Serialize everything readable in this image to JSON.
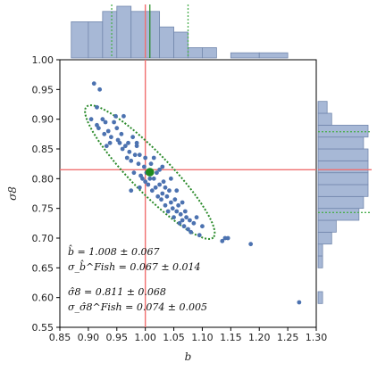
{
  "chart_data": {
    "type": "scatter",
    "xlabel": "b",
    "ylabel": "σ8",
    "xlim": [
      0.85,
      1.3
    ],
    "ylim": [
      0.55,
      1.0
    ],
    "xticks": [
      "0.85",
      "0.90",
      "0.95",
      "1.00",
      "1.05",
      "1.10",
      "1.15",
      "1.20",
      "1.25",
      "1.30"
    ],
    "yticks": [
      "0.55",
      "0.60",
      "0.65",
      "0.70",
      "0.75",
      "0.80",
      "0.85",
      "0.90",
      "0.95",
      "1.00"
    ],
    "grid": false,
    "reference_lines": {
      "b": 1.0,
      "sigma8": 0.815
    },
    "mean_point": {
      "b": 1.008,
      "sigma8": 0.811
    },
    "fisher_ellipse": {
      "center": [
        1.008,
        0.811
      ],
      "orientation": "negative correlation",
      "style": "dotted green"
    },
    "points": [
      [
        0.905,
        0.9
      ],
      [
        0.91,
        0.96
      ],
      [
        0.915,
        0.89
      ],
      [
        0.918,
        0.885
      ],
      [
        0.92,
        0.95
      ],
      [
        0.925,
        0.9
      ],
      [
        0.928,
        0.875
      ],
      [
        0.93,
        0.895
      ],
      [
        0.935,
        0.88
      ],
      [
        0.938,
        0.86
      ],
      [
        0.94,
        0.87
      ],
      [
        0.945,
        0.895
      ],
      [
        0.95,
        0.885
      ],
      [
        0.952,
        0.865
      ],
      [
        0.955,
        0.86
      ],
      [
        0.958,
        0.875
      ],
      [
        0.96,
        0.85
      ],
      [
        0.962,
        0.905
      ],
      [
        0.965,
        0.855
      ],
      [
        0.968,
        0.835
      ],
      [
        0.97,
        0.86
      ],
      [
        0.972,
        0.845
      ],
      [
        0.975,
        0.83
      ],
      [
        0.978,
        0.87
      ],
      [
        0.98,
        0.81
      ],
      [
        0.982,
        0.84
      ],
      [
        0.985,
        0.855
      ],
      [
        0.988,
        0.825
      ],
      [
        0.99,
        0.84
      ],
      [
        0.992,
        0.805
      ],
      [
        0.995,
        0.8
      ],
      [
        0.998,
        0.82
      ],
      [
        1.0,
        0.835
      ],
      [
        1.002,
        0.81
      ],
      [
        1.005,
        0.79
      ],
      [
        1.008,
        0.8
      ],
      [
        1.01,
        0.825
      ],
      [
        1.012,
        0.78
      ],
      [
        1.015,
        0.8
      ],
      [
        1.018,
        0.785
      ],
      [
        1.02,
        0.81
      ],
      [
        1.022,
        0.77
      ],
      [
        1.025,
        0.79
      ],
      [
        1.028,
        0.765
      ],
      [
        1.03,
        0.775
      ],
      [
        1.032,
        0.795
      ],
      [
        1.035,
        0.755
      ],
      [
        1.038,
        0.77
      ],
      [
        1.04,
        0.745
      ],
      [
        1.042,
        0.78
      ],
      [
        1.045,
        0.76
      ],
      [
        1.048,
        0.75
      ],
      [
        1.05,
        0.735
      ],
      [
        1.052,
        0.765
      ],
      [
        1.055,
        0.745
      ],
      [
        1.058,
        0.755
      ],
      [
        1.06,
        0.725
      ],
      [
        1.062,
        0.74
      ],
      [
        1.065,
        0.73
      ],
      [
        1.068,
        0.72
      ],
      [
        1.07,
        0.745
      ],
      [
        1.072,
        0.735
      ],
      [
        1.075,
        0.715
      ],
      [
        1.078,
        0.73
      ],
      [
        1.08,
        0.71
      ],
      [
        1.085,
        0.725
      ],
      [
        1.09,
        0.735
      ],
      [
        1.095,
        0.705
      ],
      [
        1.1,
        0.72
      ],
      [
        1.025,
        0.815
      ],
      [
        1.03,
        0.82
      ],
      [
        1.045,
        0.8
      ],
      [
        0.99,
        0.785
      ],
      [
        0.975,
        0.78
      ],
      [
        1.055,
        0.78
      ],
      [
        1.135,
        0.695
      ],
      [
        1.14,
        0.7
      ],
      [
        1.145,
        0.7
      ],
      [
        1.185,
        0.69
      ],
      [
        1.27,
        0.592
      ],
      [
        0.915,
        0.92
      ],
      [
        0.932,
        0.855
      ],
      [
        0.948,
        0.905
      ],
      [
        0.985,
        0.86
      ],
      [
        1.015,
        0.835
      ],
      [
        1.0,
        0.795
      ],
      [
        1.035,
        0.785
      ],
      [
        1.065,
        0.76
      ]
    ],
    "x_marginal_hist": {
      "bin_edges": [
        0.87,
        0.9,
        0.925,
        0.95,
        0.975,
        1.0,
        1.025,
        1.05,
        1.075,
        1.1,
        1.125,
        1.15,
        1.2,
        1.25
      ],
      "counts": [
        7,
        7,
        9,
        10,
        9,
        9,
        6,
        5,
        2,
        2,
        0,
        1,
        1
      ]
    },
    "y_marginal_hist": {
      "bin_edges": [
        0.59,
        0.61,
        0.65,
        0.67,
        0.69,
        0.71,
        0.73,
        0.75,
        0.77,
        0.79,
        0.81,
        0.83,
        0.85,
        0.87,
        0.89,
        0.91,
        0.93
      ],
      "counts": [
        1,
        0,
        1,
        1,
        3,
        4,
        9,
        10,
        11,
        11,
        11,
        11,
        10,
        11,
        3,
        2
      ]
    },
    "x_marginal_lines": {
      "reference": 1.0,
      "mean": 1.008,
      "dotted": [
        0.941,
        1.075
      ]
    },
    "y_marginal_lines": {
      "reference": 0.815,
      "dotted": [
        0.743,
        0.879
      ]
    },
    "annotations": [
      "b̂ = 1.008 ± 0.067",
      "σ_b̂^Fish = 0.067 ± 0.014",
      "σ̂8 = 0.811 ± 0.068",
      "σ_σ̂8^Fish = 0.074 ± 0.005"
    ]
  },
  "colors": {
    "points": "#4c72b0",
    "hist_fill": "#a7b8d6",
    "hist_edge": "#7388ad",
    "reference_line": "#f07070",
    "mean_marker": "#1f8a1f",
    "ellipse": "#2a8a2a",
    "dotted_lines": "#4caf50"
  }
}
